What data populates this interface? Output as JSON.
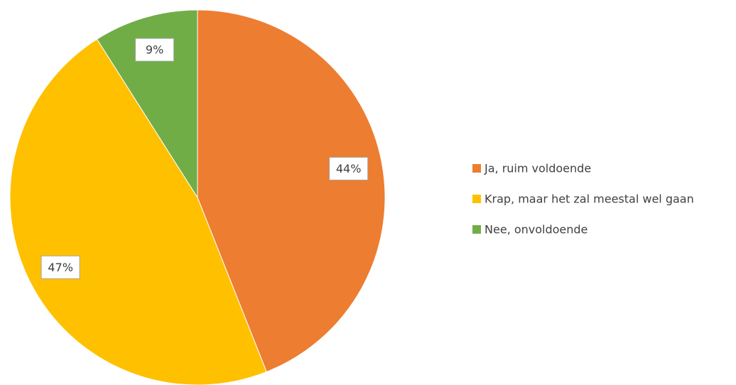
{
  "chart_data": {
    "type": "pie",
    "categories": [
      "Ja, ruim voldoende",
      "Krap, maar het zal meestal wel gaan",
      "Nee, onvoldoende"
    ],
    "values": [
      44,
      47,
      9
    ],
    "value_labels": [
      "44%",
      "47%",
      "9%"
    ],
    "colors": [
      "#ed7d31",
      "#ffc000",
      "#70ad47"
    ],
    "legend": "right"
  }
}
